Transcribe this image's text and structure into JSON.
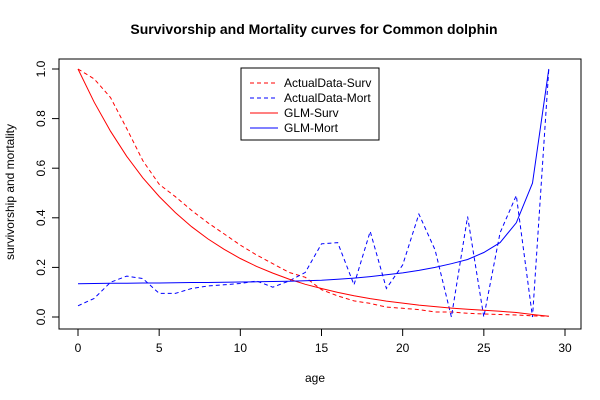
{
  "chart_data": {
    "type": "line",
    "title": "Survivorship and Mortality curves for Common dolphin",
    "xlabel": "age",
    "ylabel": "survivorship and mortality",
    "xlim": [
      0,
      30
    ],
    "ylim": [
      0,
      1
    ],
    "xticks": [
      0,
      5,
      10,
      15,
      20,
      25,
      30
    ],
    "yticks": [
      0.0,
      0.2,
      0.4,
      0.6,
      0.8,
      1.0
    ],
    "xtick_labels": [
      "0",
      "5",
      "10",
      "15",
      "20",
      "25",
      "30"
    ],
    "ytick_labels": [
      "0.0",
      "0.2",
      "0.4",
      "0.6",
      "0.8",
      "1.0"
    ],
    "legend_position": "top-center",
    "series": [
      {
        "name": "ActualData-Surv",
        "color": "#ff0000",
        "style": "dashed",
        "x": [
          0,
          1,
          2,
          3,
          4,
          5,
          6,
          7,
          8,
          9,
          10,
          11,
          12,
          13,
          14,
          15,
          16,
          17,
          18,
          19,
          20,
          21,
          22,
          23,
          24,
          25,
          26,
          27,
          28,
          29
        ],
        "values": [
          1.0,
          0.96,
          0.885,
          0.76,
          0.63,
          0.535,
          0.485,
          0.43,
          0.38,
          0.335,
          0.29,
          0.25,
          0.215,
          0.18,
          0.16,
          0.11,
          0.085,
          0.065,
          0.055,
          0.04,
          0.035,
          0.03,
          0.02,
          0.02,
          0.015,
          0.012,
          0.01,
          0.008,
          0.005,
          0.003
        ]
      },
      {
        "name": "ActualData-Mort",
        "color": "#0000ff",
        "style": "dashed",
        "x": [
          0,
          1,
          2,
          3,
          4,
          5,
          6,
          7,
          8,
          9,
          10,
          11,
          12,
          13,
          14,
          15,
          16,
          17,
          18,
          19,
          20,
          21,
          22,
          23,
          24,
          25,
          26,
          27,
          28,
          29
        ],
        "values": [
          0.045,
          0.075,
          0.14,
          0.165,
          0.155,
          0.095,
          0.095,
          0.115,
          0.125,
          0.13,
          0.135,
          0.145,
          0.12,
          0.145,
          0.18,
          0.295,
          0.3,
          0.13,
          0.345,
          0.115,
          0.21,
          0.415,
          0.27,
          0.0,
          0.405,
          0.0,
          0.34,
          0.49,
          0.0,
          1.0
        ]
      },
      {
        "name": "GLM-Surv",
        "color": "#ff0000",
        "style": "solid",
        "x": [
          0,
          1,
          2,
          3,
          4,
          5,
          6,
          7,
          8,
          9,
          10,
          11,
          12,
          13,
          14,
          15,
          16,
          17,
          18,
          19,
          20,
          21,
          22,
          23,
          24,
          25,
          26,
          27,
          28,
          29
        ],
        "values": [
          1.0,
          0.866,
          0.749,
          0.648,
          0.561,
          0.486,
          0.421,
          0.364,
          0.315,
          0.273,
          0.236,
          0.204,
          0.177,
          0.153,
          0.132,
          0.115,
          0.099,
          0.086,
          0.074,
          0.064,
          0.056,
          0.048,
          0.042,
          0.036,
          0.031,
          0.027,
          0.023,
          0.018,
          0.01,
          0.003
        ]
      },
      {
        "name": "GLM-Mort",
        "color": "#0000ff",
        "style": "solid",
        "x": [
          0,
          1,
          2,
          3,
          4,
          5,
          6,
          7,
          8,
          9,
          10,
          11,
          12,
          13,
          14,
          15,
          16,
          17,
          18,
          19,
          20,
          21,
          22,
          23,
          24,
          25,
          26,
          27,
          28,
          29
        ],
        "values": [
          0.134,
          0.135,
          0.136,
          0.136,
          0.137,
          0.137,
          0.138,
          0.139,
          0.139,
          0.14,
          0.141,
          0.142,
          0.143,
          0.144,
          0.146,
          0.148,
          0.152,
          0.157,
          0.163,
          0.17,
          0.178,
          0.188,
          0.2,
          0.215,
          0.232,
          0.26,
          0.3,
          0.38,
          0.54,
          1.0
        ]
      }
    ]
  }
}
